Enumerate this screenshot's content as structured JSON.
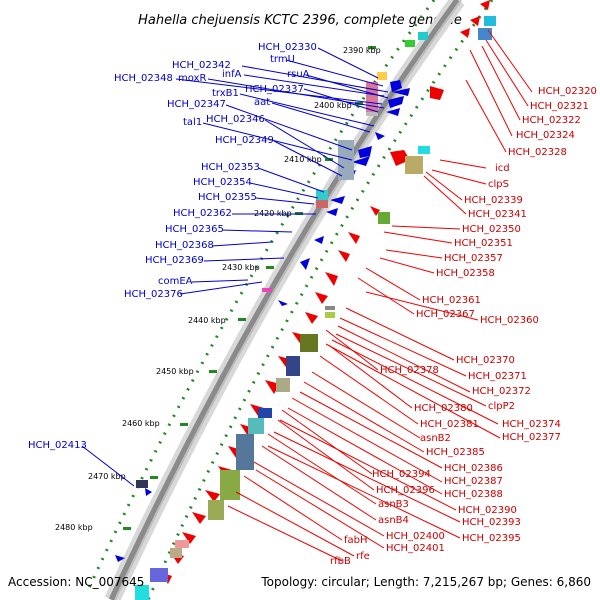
{
  "title": "Hahella chejuensis KCTC 2396, complete genome",
  "accession": "Accession: NC_007645",
  "topology": "Topology: circular; Length: 7,215,267 bp; Genes: 6,860",
  "colors": {
    "forward": "#0000dd",
    "reverse": "#ee0000",
    "backbone": "#8a8a8a",
    "tick": "#228822",
    "label_forward": "#0000cc",
    "label_reverse": "#cc0000"
  },
  "tick_labels": [
    "2390 kbp",
    "2400 kbp",
    "2410 kbp",
    "2420 kbp",
    "2430 kbp",
    "2440 kbp",
    "2450 kbp",
    "2460 kbp",
    "2470 kbp",
    "2480 kbp"
  ],
  "forward_labels": [
    "HCH_02330",
    "trmU",
    "HCH_02342",
    "infA",
    "rsuA",
    "HCH_02348",
    "moxR",
    "HCH_02337",
    "trxB1",
    "aat",
    "HCH_02347",
    "tal1",
    "HCH_02346",
    "HCH_02349",
    "HCH_02353",
    "HCH_02354",
    "HCH_02355",
    "HCH_02362",
    "HCH_02365",
    "HCH_02368",
    "HCH_02369",
    "comEA",
    "HCH_02376",
    "HCH_02413"
  ],
  "reverse_labels": [
    "HCH_02320",
    "HCH_02321",
    "HCH_02322",
    "HCH_02324",
    "HCH_02328",
    "icd",
    "clpS",
    "HCH_02339",
    "HCH_02341",
    "HCH_02350",
    "HCH_02351",
    "HCH_02357",
    "HCH_02358",
    "HCH_02361",
    "HCH_02367",
    "HCH_02360",
    "HCH_02370",
    "HCH_02378",
    "HCH_02371",
    "HCH_02372",
    "clpP2",
    "HCH_02380",
    "HCH_02374",
    "HCH_02381",
    "HCH_02377",
    "asnB2",
    "HCH_02385",
    "HCH_02386",
    "HCH_02394",
    "HCH_02387",
    "HCH_02396",
    "HCH_02388",
    "asnB3",
    "HCH_02390",
    "asnB4",
    "HCH_02393",
    "HCH_02400",
    "HCH_02395",
    "fabH",
    "HCH_02401",
    "rfe",
    "rfbB"
  ]
}
